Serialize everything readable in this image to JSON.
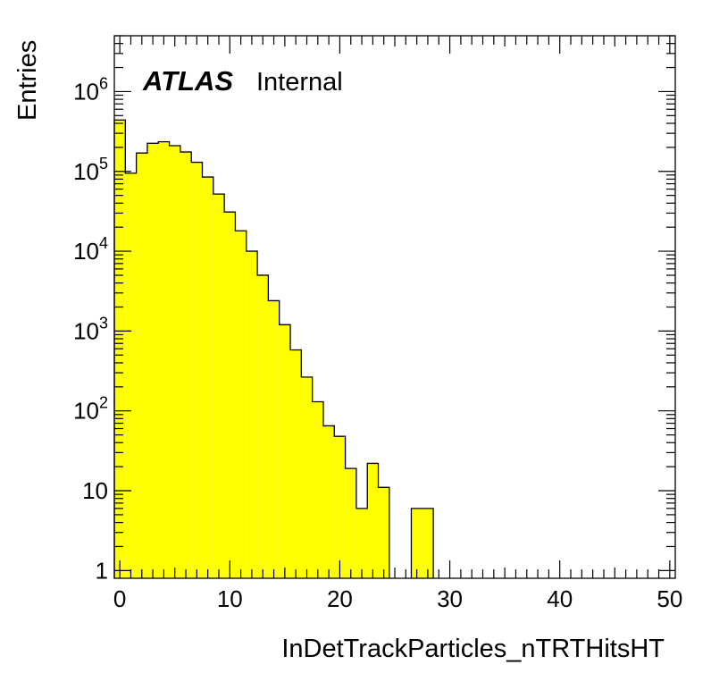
{
  "chart_data": {
    "type": "bar",
    "xlabel": "InDetTrackParticles_nTRTHitsHT",
    "ylabel": "Entries",
    "xlim": [
      -0.5,
      50.5
    ],
    "ylim": [
      0.8,
      5000000
    ],
    "yscale": "log",
    "grid": false,
    "fill_color": "#ffff00",
    "line_color": "#000000",
    "label": {
      "experiment": "ATLAS",
      "status": "Internal"
    },
    "x_ticks": [
      "0",
      "10",
      "20",
      "30",
      "40",
      "50"
    ],
    "x_tick_values": [
      0,
      10,
      20,
      30,
      40,
      50
    ],
    "y_ticks": [
      {
        "value": 1,
        "base": "1",
        "exp": ""
      },
      {
        "value": 10,
        "base": "10",
        "exp": ""
      },
      {
        "value": 100,
        "base": "10",
        "exp": "2"
      },
      {
        "value": 1000,
        "base": "10",
        "exp": "3"
      },
      {
        "value": 10000,
        "base": "10",
        "exp": "4"
      },
      {
        "value": 100000,
        "base": "10",
        "exp": "5"
      },
      {
        "value": 1000000,
        "base": "10",
        "exp": "6"
      }
    ],
    "bin_low_edges": [
      -0.5,
      0.5,
      1.5,
      2.5,
      3.5,
      4.5,
      5.5,
      6.5,
      7.5,
      8.5,
      9.5,
      10.5,
      11.5,
      12.5,
      13.5,
      14.5,
      15.5,
      16.5,
      17.5,
      18.5,
      19.5,
      20.5,
      21.5,
      22.5,
      23.5,
      24.5,
      25.5,
      26.5,
      27.5,
      28.5
    ],
    "bin_width": 1,
    "values": [
      440000,
      95000,
      170000,
      225000,
      235000,
      210000,
      175000,
      130000,
      85000,
      52000,
      31000,
      18000,
      10000,
      5000,
      2400,
      1200,
      580,
      265,
      130,
      65,
      48,
      19,
      6,
      22,
      11,
      0,
      0,
      6,
      6,
      0
    ]
  }
}
